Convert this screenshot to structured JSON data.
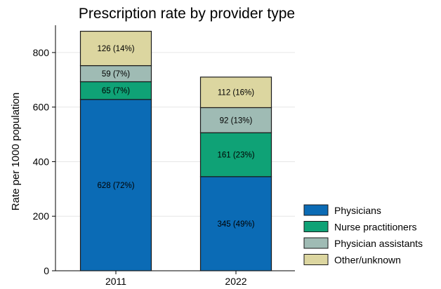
{
  "chart_data": {
    "type": "bar",
    "stacked": true,
    "title": "Prescription rate by provider type",
    "xlabel": "",
    "ylabel": "Rate per 1000 population",
    "categories": [
      "2011",
      "2022"
    ],
    "ylim": [
      0,
      900
    ],
    "yticks": [
      0,
      200,
      400,
      600,
      800
    ],
    "grid": true,
    "legend_position": "bottom-right",
    "series": [
      {
        "name": "Physicians",
        "color": "#0b6bb5",
        "values": [
          628,
          345
        ],
        "labels": [
          "628 (72%)",
          "345 (49%)"
        ]
      },
      {
        "name": "Nurse practitioners",
        "color": "#0fa276",
        "values": [
          65,
          161
        ],
        "labels": [
          "65 (7%)",
          "161 (23%)"
        ]
      },
      {
        "name": "Physician assistants",
        "color": "#9fbbb4",
        "values": [
          59,
          92
        ],
        "labels": [
          "59 (7%)",
          "92 (13%)"
        ]
      },
      {
        "name": "Other/unknown",
        "color": "#dcd6a0",
        "values": [
          126,
          112
        ],
        "labels": [
          "126 (14%)",
          "112 (16%)"
        ]
      }
    ]
  }
}
